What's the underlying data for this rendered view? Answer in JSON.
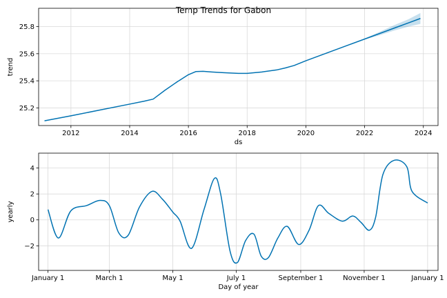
{
  "chart_data": {
    "title": "Temp Trends for Gabon",
    "panels": [
      {
        "type": "line",
        "xlabel": "ds",
        "ylabel": "trend",
        "xlim": [
          2010.9,
          2024.5
        ],
        "ylim": [
          25.07,
          25.935
        ],
        "xticks": [
          2012,
          2014,
          2016,
          2018,
          2020,
          2022,
          2024
        ],
        "xtick_labels": [
          "2012",
          "2014",
          "2016",
          "2018",
          "2020",
          "2022",
          "2024"
        ],
        "yticks": [
          25.2,
          25.4,
          25.6,
          25.8
        ],
        "ytick_labels": [
          "25.2",
          "25.4",
          "25.6",
          "25.8"
        ],
        "grid": true,
        "series": [
          {
            "x": [
              2011.1,
              2012.0,
              2013.0,
              2014.0,
              2014.5,
              2014.8,
              2015.2,
              2015.6,
              2016.0,
              2016.25,
              2016.5,
              2016.8,
              2017.2,
              2017.7,
              2018.0,
              2018.5,
              2019.0,
              2019.3,
              2019.6,
              2020.0,
              2020.5,
              2021.0,
              2021.5,
              2022.0,
              2022.5,
              2023.0,
              2023.5,
              2023.9
            ],
            "y": [
              25.105,
              25.142,
              25.185,
              25.228,
              25.25,
              25.265,
              25.33,
              25.39,
              25.445,
              25.468,
              25.47,
              25.465,
              25.46,
              25.455,
              25.455,
              25.465,
              25.48,
              25.495,
              25.513,
              25.548,
              25.588,
              25.628,
              25.668,
              25.708,
              25.748,
              25.788,
              25.828,
              25.86
            ]
          }
        ],
        "uncertainty": {
          "x": [
            2022.0,
            2022.5,
            2023.0,
            2023.5,
            2023.9
          ],
          "lower": [
            25.705,
            25.735,
            25.77,
            25.8,
            25.82
          ],
          "upper": [
            25.712,
            25.76,
            25.81,
            25.855,
            25.9
          ]
        }
      },
      {
        "type": "line",
        "xlabel": "Day of year",
        "ylabel": "yearly",
        "xlim": [
          -9,
          375
        ],
        "ylim": [
          -3.9,
          5.15
        ],
        "xticks": [
          0,
          59,
          120,
          181,
          243,
          304,
          365
        ],
        "xtick_labels": [
          "January 1",
          "March 1",
          "May 1",
          "July 1",
          "September 1",
          "November 1",
          "January 1"
        ],
        "yticks": [
          -2,
          0,
          2,
          4
        ],
        "ytick_labels": [
          "−2",
          "0",
          "2",
          "4"
        ],
        "grid": true,
        "series": [
          {
            "x": [
              0,
              10,
              22,
              37,
              50,
              59,
              68,
              77,
              88,
              100,
              110,
              120,
              127,
              138,
              150,
              160,
              166,
              175,
              182,
              190,
              198,
              205,
              212,
              221,
              230,
              241,
              251,
              260,
              270,
              283,
              293,
              301,
              309,
              315,
              322,
              333,
              345,
              350,
              365
            ],
            "y": [
              0.8,
              -1.4,
              0.7,
              1.1,
              1.5,
              1.1,
              -1.0,
              -1.2,
              1.0,
              2.2,
              1.6,
              0.6,
              -0.1,
              -2.2,
              0.8,
              3.2,
              2.0,
              -2.4,
              -3.3,
              -1.6,
              -1.1,
              -2.8,
              -2.9,
              -1.4,
              -0.5,
              -1.9,
              -0.8,
              1.1,
              0.5,
              -0.1,
              0.3,
              -0.2,
              -0.8,
              0.2,
              3.5,
              4.6,
              4.1,
              2.2,
              1.3
            ]
          }
        ]
      }
    ],
    "colors": {
      "line": "#0072B2",
      "band": "#0072B2",
      "grid": "#d9d9d9",
      "axes": "#000000"
    }
  }
}
